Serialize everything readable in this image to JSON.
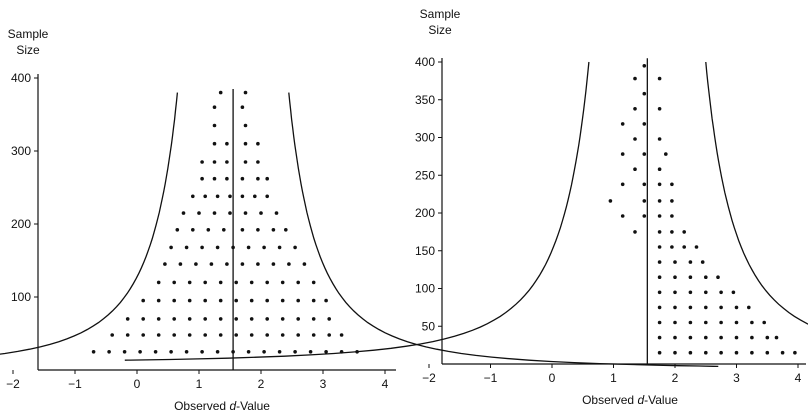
{
  "chart_data": [
    {
      "type": "scatter",
      "panel": "left",
      "ylabel_lines": [
        "Sample",
        "Size"
      ],
      "xlabel_prefix": "Observed ",
      "xlabel_italic": "d",
      "xlabel_suffix": "-Value",
      "x_ticks": [
        "−2",
        "−1",
        "0",
        "1",
        "2",
        "3",
        "4"
      ],
      "x_tick_values": [
        -2,
        -1,
        0,
        1,
        2,
        3,
        4
      ],
      "y_ticks": [
        "100",
        "200",
        "300",
        "400"
      ],
      "y_tick_values": [
        100,
        200,
        300,
        400
      ],
      "xlim": [
        -2,
        4
      ],
      "ylim": [
        0,
        410
      ],
      "true_value": 1.55,
      "funnel": {
        "center": 1.55,
        "k": 17.5,
        "y_top": 380,
        "y_bottom": 5
      },
      "dot_rows": [
        {
          "y": 380,
          "x": [
            1.35,
            1.75
          ]
        },
        {
          "y": 360,
          "x": [
            1.25,
            1.7
          ]
        },
        {
          "y": 335,
          "x": [
            1.25,
            1.75
          ]
        },
        {
          "y": 310,
          "x": [
            1.25,
            1.45,
            1.75,
            1.95
          ]
        },
        {
          "y": 285,
          "x": [
            1.05,
            1.25,
            1.45,
            1.75,
            1.95
          ]
        },
        {
          "y": 262,
          "x": [
            1.05,
            1.25,
            1.45,
            1.7,
            1.95,
            2.1
          ]
        },
        {
          "y": 238,
          "x": [
            0.9,
            1.1,
            1.3,
            1.5,
            1.7,
            1.9,
            2.1
          ]
        },
        {
          "y": 215,
          "x": [
            0.75,
            1.0,
            1.25,
            1.5,
            1.75,
            2.0,
            2.25
          ]
        },
        {
          "y": 192,
          "x": [
            0.65,
            0.9,
            1.15,
            1.4,
            1.7,
            1.95,
            2.2,
            2.4
          ]
        },
        {
          "y": 168,
          "x": [
            0.55,
            0.8,
            1.05,
            1.3,
            1.55,
            1.8,
            2.05,
            2.3,
            2.55
          ]
        },
        {
          "y": 145,
          "x": [
            0.45,
            0.7,
            0.95,
            1.2,
            1.45,
            1.7,
            1.95,
            2.2,
            2.45,
            2.7
          ]
        },
        {
          "y": 120,
          "x": [
            0.35,
            0.6,
            0.85,
            1.1,
            1.35,
            1.6,
            1.85,
            2.1,
            2.35,
            2.6,
            2.85
          ]
        },
        {
          "y": 95,
          "x": [
            0.1,
            0.35,
            0.6,
            0.85,
            1.1,
            1.35,
            1.6,
            1.85,
            2.1,
            2.35,
            2.6,
            2.85,
            3.05
          ]
        },
        {
          "y": 70,
          "x": [
            -0.15,
            0.1,
            0.35,
            0.6,
            0.85,
            1.1,
            1.35,
            1.6,
            1.85,
            2.1,
            2.35,
            2.6,
            2.85,
            3.1
          ]
        },
        {
          "y": 48,
          "x": [
            -0.4,
            -0.15,
            0.1,
            0.35,
            0.6,
            0.85,
            1.1,
            1.35,
            1.6,
            1.85,
            2.1,
            2.35,
            2.6,
            2.85,
            3.1,
            3.3
          ]
        },
        {
          "y": 25,
          "x": [
            -0.7,
            -0.45,
            -0.2,
            0.05,
            0.3,
            0.55,
            0.8,
            1.05,
            1.3,
            1.55,
            1.8,
            2.05,
            2.3,
            2.55,
            2.8,
            3.05,
            3.3,
            3.55
          ]
        }
      ]
    },
    {
      "type": "scatter",
      "panel": "right",
      "ylabel_lines": [
        "Sample",
        "Size"
      ],
      "xlabel_prefix": "Observed ",
      "xlabel_italic": "d",
      "xlabel_suffix": "-Value",
      "x_ticks": [
        "−2",
        "−1",
        "0",
        "1",
        "2",
        "3",
        "4"
      ],
      "x_tick_values": [
        -2,
        -1,
        0,
        1,
        2,
        3,
        4
      ],
      "y_ticks": [
        "50",
        "100",
        "150",
        "200",
        "250",
        "300",
        "350",
        "400"
      ],
      "y_tick_values": [
        50,
        100,
        150,
        200,
        250,
        300,
        350,
        400
      ],
      "xlim": [
        -2,
        4
      ],
      "ylim": [
        0,
        410
      ],
      "true_value": 1.55,
      "funnel": {
        "center": 1.55,
        "k": 19,
        "y_top": 400,
        "y_bottom": 5
      },
      "dot_rows": [
        {
          "y": 395,
          "x": [
            1.5
          ]
        },
        {
          "y": 378,
          "x": [
            1.35,
            1.75
          ]
        },
        {
          "y": 358,
          "x": [
            1.5
          ]
        },
        {
          "y": 338,
          "x": [
            1.35,
            1.75
          ]
        },
        {
          "y": 318,
          "x": [
            1.15,
            1.5
          ]
        },
        {
          "y": 298,
          "x": [
            1.35,
            1.75
          ]
        },
        {
          "y": 278,
          "x": [
            1.15,
            1.5,
            1.85
          ]
        },
        {
          "y": 258,
          "x": [
            1.35,
            1.75
          ]
        },
        {
          "y": 238,
          "x": [
            1.15,
            1.5,
            1.75,
            1.95
          ]
        },
        {
          "y": 216,
          "x": [
            0.95,
            1.5,
            1.75,
            1.95
          ]
        },
        {
          "y": 196,
          "x": [
            1.15,
            1.5,
            1.75,
            1.95
          ]
        },
        {
          "y": 175,
          "x": [
            1.35,
            1.75,
            1.95,
            2.15
          ]
        },
        {
          "y": 155,
          "x": [
            1.75,
            1.95,
            2.15,
            2.35
          ]
        },
        {
          "y": 135,
          "x": [
            1.75,
            2.0,
            2.25,
            2.45
          ]
        },
        {
          "y": 115,
          "x": [
            1.75,
            2.0,
            2.25,
            2.5,
            2.7
          ]
        },
        {
          "y": 95,
          "x": [
            1.75,
            2.0,
            2.25,
            2.5,
            2.75,
            2.95
          ]
        },
        {
          "y": 75,
          "x": [
            1.75,
            2.0,
            2.25,
            2.5,
            2.75,
            3.0,
            3.2
          ]
        },
        {
          "y": 55,
          "x": [
            1.75,
            2.0,
            2.25,
            2.5,
            2.75,
            3.0,
            3.25,
            3.45
          ]
        },
        {
          "y": 35,
          "x": [
            1.75,
            2.0,
            2.25,
            2.5,
            2.75,
            3.0,
            3.25,
            3.5,
            3.65
          ]
        },
        {
          "y": 15,
          "x": [
            1.75,
            2.0,
            2.25,
            2.5,
            2.75,
            3.0,
            3.25,
            3.5,
            3.75,
            3.95
          ]
        }
      ]
    }
  ]
}
